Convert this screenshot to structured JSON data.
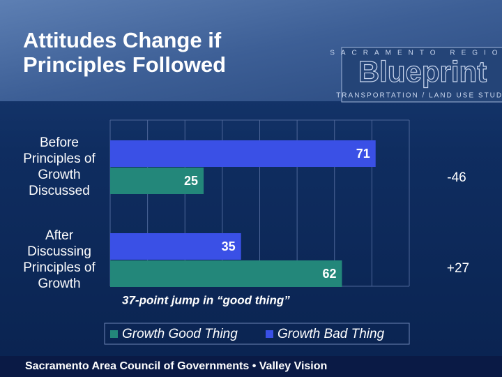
{
  "chart_data": {
    "type": "bar",
    "orientation": "horizontal",
    "title": "Attitudes Change if Principles Followed",
    "categories": [
      "Before Principles of Growth Discussed",
      "After Discussing Principles of Growth"
    ],
    "series": [
      {
        "name": "Growth Good Thing",
        "color": "#23877a",
        "values": [
          25,
          62
        ]
      },
      {
        "name": "Growth Bad Thing",
        "color": "#3a50e6",
        "values": [
          71,
          35
        ]
      }
    ],
    "xlim": [
      0,
      80
    ],
    "xticks": [
      0,
      10,
      20,
      30,
      40,
      50,
      60,
      70,
      80
    ],
    "grid": true,
    "legend": "bottom",
    "annotations": [
      "-46",
      "+27",
      "37-point jump in “good thing”"
    ]
  },
  "logo": {
    "top": "SACRAMENTO REGION",
    "name": "Blueprint",
    "bottom": "TRANSPORTATION / LAND USE STUDY"
  },
  "footer": "Sacramento Area Council of Governments • Valley Vision"
}
